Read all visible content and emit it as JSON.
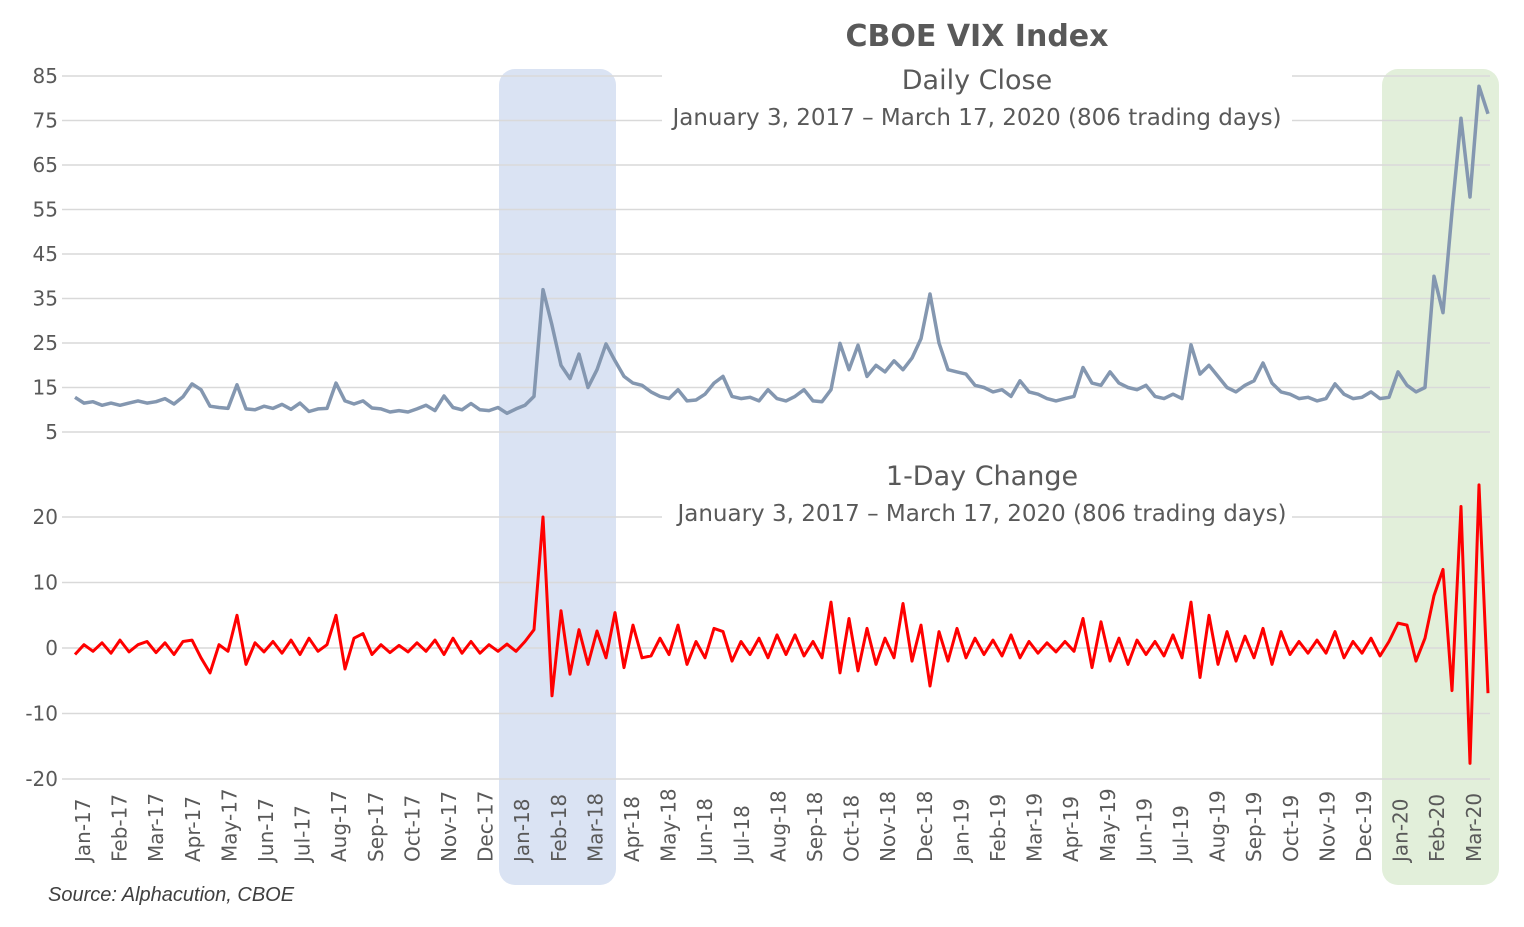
{
  "chart_data": {
    "type": "line",
    "title": "CBOE VIX Index",
    "source": "Source: Alphacution, CBOE",
    "colors": {
      "close": "#8497B0",
      "change": "#FF0000",
      "highlight_1": "#DAE3F3",
      "highlight_2": "#E2EFDA",
      "grid": "#D9D9D9"
    },
    "months": [
      "Jan-17",
      "Feb-17",
      "Mar-17",
      "Apr-17",
      "May-17",
      "Jun-17",
      "Jul-17",
      "Aug-17",
      "Sep-17",
      "Oct-17",
      "Nov-17",
      "Dec-17",
      "Jan-18",
      "Feb-18",
      "Mar-18",
      "Apr-18",
      "May-18",
      "Jun-18",
      "Jul-18",
      "Aug-18",
      "Sep-18",
      "Oct-18",
      "Nov-18",
      "Dec-18",
      "Jan-19",
      "Feb-19",
      "Mar-19",
      "Apr-19",
      "May-19",
      "Jun-19",
      "Jul-19",
      "Aug-19",
      "Sep-19",
      "Oct-19",
      "Nov-19",
      "Dec-19",
      "Jan-20",
      "Feb-20",
      "Mar-20"
    ],
    "highlights": [
      {
        "from": "Jan-18",
        "to": "Mar-18"
      },
      {
        "from": "Jan-20",
        "to": "Mar-20"
      }
    ],
    "panels": [
      {
        "name": "close",
        "subtitle": "Daily Close",
        "subtitle2": "January 3, 2017 – March 17, 2020 (806 trading days)",
        "yticks": [
          "85",
          "75",
          "65",
          "55",
          "45",
          "35",
          "25",
          "15",
          "5"
        ],
        "ylim": [
          5,
          85
        ],
        "values": [
          12.8,
          11.5,
          11.8,
          11.0,
          11.5,
          11.0,
          11.5,
          12.0,
          11.5,
          11.8,
          12.5,
          11.3,
          12.9,
          15.8,
          14.5,
          10.8,
          10.5,
          10.3,
          15.6,
          10.2,
          10.0,
          10.8,
          10.3,
          11.2,
          10.1,
          11.5,
          9.6,
          10.2,
          10.3,
          16.0,
          12.0,
          11.3,
          12.0,
          10.4,
          10.2,
          9.5,
          9.8,
          9.5,
          10.2,
          11.0,
          9.8,
          13.1,
          10.5,
          10.0,
          11.4,
          10.0,
          9.8,
          10.5,
          9.2,
          10.2,
          11.0,
          13.0,
          37.0,
          29.0,
          20.0,
          17.0,
          22.5,
          15.0,
          19.0,
          24.8,
          21.0,
          17.5,
          16.0,
          15.5,
          14.0,
          13.0,
          12.5,
          14.5,
          12.0,
          12.2,
          13.5,
          16.0,
          17.5,
          13.0,
          12.5,
          12.8,
          12.0,
          14.5,
          12.5,
          12.0,
          13.0,
          14.5,
          12.0,
          11.8,
          14.5,
          24.9,
          19.0,
          24.5,
          17.5,
          20.0,
          18.5,
          21.0,
          19.0,
          21.6,
          26.0,
          36.0,
          25.0,
          19.0,
          18.5,
          18.0,
          15.5,
          15.0,
          14.0,
          14.5,
          13.0,
          16.5,
          14.0,
          13.5,
          12.5,
          12.0,
          12.5,
          13.0,
          19.5,
          16.0,
          15.5,
          18.5,
          16.0,
          15.0,
          14.5,
          15.5,
          13.0,
          12.5,
          13.5,
          12.5,
          24.6,
          18.0,
          20.0,
          17.5,
          15.0,
          14.0,
          15.5,
          16.5,
          20.5,
          16.0,
          14.0,
          13.5,
          12.5,
          12.8,
          12.0,
          12.5,
          15.8,
          13.5,
          12.5,
          12.8,
          14.0,
          12.5,
          12.8,
          18.5,
          15.5,
          14.0,
          15.0,
          40.0,
          31.8,
          54.5,
          75.5,
          57.8,
          82.7,
          76.5
        ]
      },
      {
        "name": "change",
        "subtitle": "1-Day Change",
        "subtitle2": "January 3, 2017 – March 17, 2020 (806 trading days)",
        "yticks": [
          "20",
          "10",
          "0",
          "-10",
          "-20"
        ],
        "ylim": [
          -20,
          20
        ],
        "values": [
          -1,
          0.5,
          -0.5,
          0.8,
          -0.8,
          1.2,
          -0.6,
          0.5,
          1.0,
          -0.7,
          0.8,
          -1.0,
          1.0,
          1.2,
          -1.5,
          -3.8,
          0.5,
          -0.5,
          5.0,
          -2.5,
          0.8,
          -0.6,
          1.0,
          -0.8,
          1.2,
          -1.0,
          1.5,
          -0.5,
          0.5,
          5.0,
          -3.2,
          1.5,
          2.2,
          -1.0,
          0.5,
          -0.7,
          0.4,
          -0.6,
          0.8,
          -0.5,
          1.2,
          -1.0,
          1.5,
          -0.8,
          1.0,
          -0.8,
          0.5,
          -0.5,
          0.6,
          -0.5,
          1.0,
          2.8,
          20.0,
          -7.3,
          5.7,
          -4.0,
          2.8,
          -2.5,
          2.6,
          -1.5,
          5.4,
          -3.0,
          3.5,
          -1.5,
          -1.2,
          1.5,
          -1.0,
          3.5,
          -2.5,
          1.0,
          -1.5,
          3.0,
          2.5,
          -2.0,
          1.0,
          -1.0,
          1.5,
          -1.5,
          2.0,
          -1.0,
          2.0,
          -1.2,
          1.0,
          -1.5,
          7.0,
          -3.8,
          4.5,
          -3.5,
          3.0,
          -2.5,
          1.5,
          -1.5,
          6.8,
          -2.0,
          3.5,
          -5.8,
          2.5,
          -2.0,
          3.0,
          -1.5,
          1.5,
          -1.0,
          1.2,
          -1.2,
          2.0,
          -1.5,
          1.0,
          -0.8,
          0.8,
          -0.6,
          1.0,
          -0.5,
          4.5,
          -3.0,
          4.0,
          -2.0,
          1.5,
          -2.5,
          1.2,
          -1.0,
          1.0,
          -1.2,
          2.0,
          -1.5,
          7.0,
          -4.5,
          5.0,
          -2.5,
          2.5,
          -2.0,
          1.8,
          -1.5,
          3.0,
          -2.5,
          2.5,
          -1.0,
          1.0,
          -0.8,
          1.2,
          -0.8,
          2.5,
          -1.5,
          1.0,
          -0.8,
          1.5,
          -1.2,
          1.0,
          3.8,
          3.5,
          -2.0,
          1.5,
          8.0,
          12.0,
          -6.5,
          21.6,
          -17.6,
          24.9,
          -6.9
        ]
      }
    ]
  }
}
